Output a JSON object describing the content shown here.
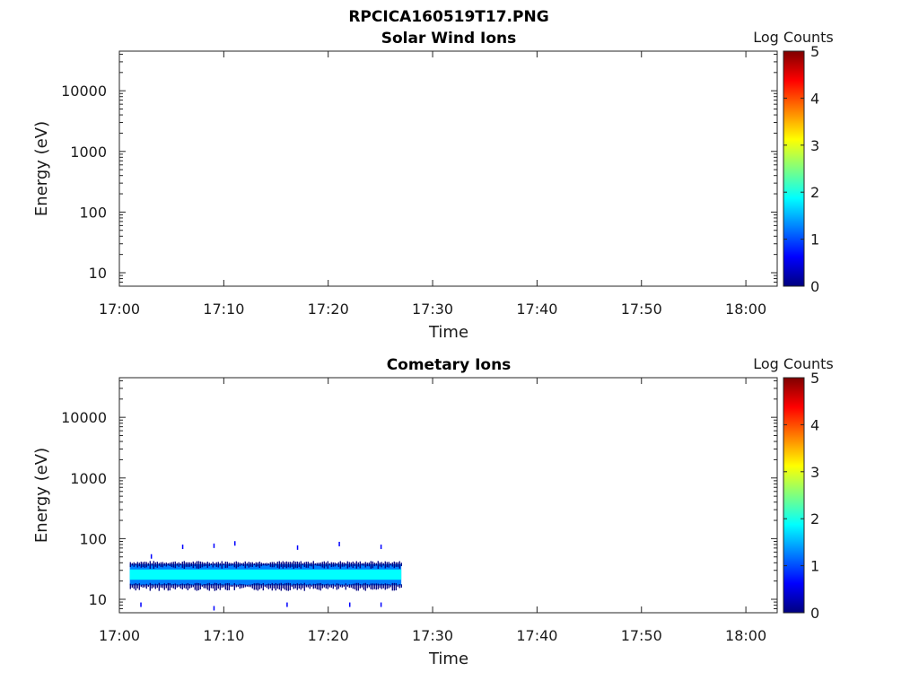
{
  "figure": {
    "title": "RPCICA160519T17.PNG"
  },
  "colorbar": {
    "label": "Log Counts",
    "ticks": [
      "0",
      "1",
      "2",
      "3",
      "4",
      "5"
    ],
    "colors": [
      "#00007f",
      "#0000ff",
      "#007fff",
      "#00ffff",
      "#7fff7f",
      "#ffff00",
      "#ff7f00",
      "#ff0000",
      "#7f0000"
    ]
  },
  "chart_data": [
    {
      "type": "heatmap",
      "title": "Solar Wind Ions",
      "xlabel": "Time",
      "ylabel": "Energy (eV)",
      "x_ticks": [
        "17:00",
        "17:10",
        "17:20",
        "17:30",
        "17:40",
        "17:50",
        "18:00"
      ],
      "y_ticks": [
        "10",
        "100",
        "1000",
        "10000"
      ],
      "xlim": [
        "17:00",
        "18:03"
      ],
      "ylim": [
        6,
        45000
      ],
      "yscale": "log",
      "colorbar_range": [
        0,
        5
      ],
      "data_regions": []
    },
    {
      "type": "heatmap",
      "title": "Cometary Ions",
      "xlabel": "Time",
      "ylabel": "Energy (eV)",
      "x_ticks": [
        "17:00",
        "17:10",
        "17:20",
        "17:30",
        "17:40",
        "17:50",
        "18:00"
      ],
      "y_ticks": [
        "10",
        "100",
        "1000",
        "10000"
      ],
      "xlim": [
        "17:00",
        "18:03"
      ],
      "ylim": [
        6,
        45000
      ],
      "yscale": "log",
      "colorbar_range": [
        0,
        5
      ],
      "data_regions": [
        {
          "time_start": "17:01",
          "time_end": "17:27",
          "energy_min": 17,
          "energy_max": 38,
          "log_counts": 1.0
        },
        {
          "time_start": "17:01",
          "time_end": "17:27",
          "energy_min": 21,
          "energy_max": 31,
          "log_counts": 1.6
        }
      ],
      "sparse_points": [
        {
          "time": "17:03",
          "energy": 50,
          "log_counts": 0.5
        },
        {
          "time": "17:06",
          "energy": 72,
          "log_counts": 0.5
        },
        {
          "time": "17:09",
          "energy": 75,
          "log_counts": 0.5
        },
        {
          "time": "17:11",
          "energy": 82,
          "log_counts": 0.8
        },
        {
          "time": "17:17",
          "energy": 70,
          "log_counts": 0.5
        },
        {
          "time": "17:21",
          "energy": 80,
          "log_counts": 0.8
        },
        {
          "time": "17:25",
          "energy": 72,
          "log_counts": 0.5
        },
        {
          "time": "17:02",
          "energy": 8,
          "log_counts": 0.5
        },
        {
          "time": "17:09",
          "energy": 7,
          "log_counts": 0.5
        },
        {
          "time": "17:16",
          "energy": 8,
          "log_counts": 0.5
        },
        {
          "time": "17:22",
          "energy": 8,
          "log_counts": 0.5
        },
        {
          "time": "17:25",
          "energy": 8,
          "log_counts": 0.5
        }
      ]
    }
  ]
}
